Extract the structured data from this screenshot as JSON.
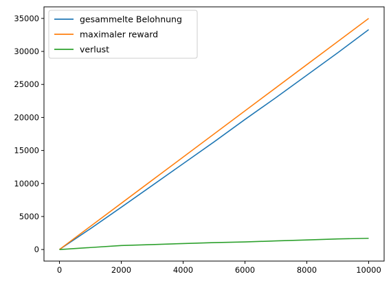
{
  "chart_data": {
    "type": "line",
    "title": "",
    "xlabel": "",
    "ylabel": "",
    "xlim": [
      -500,
      10500
    ],
    "ylim": [
      -1750,
      36750
    ],
    "xticks": [
      0,
      2000,
      4000,
      6000,
      8000,
      10000
    ],
    "yticks": [
      0,
      5000,
      10000,
      15000,
      20000,
      25000,
      30000,
      35000
    ],
    "grid": false,
    "legend": "top-left",
    "series": [
      {
        "name": "gesammelte Belohnung",
        "color": "#1f77b4",
        "x": [
          0,
          1000,
          2000,
          3000,
          4000,
          5000,
          6000,
          7000,
          8000,
          9000,
          10000
        ],
        "y": [
          0,
          3150,
          6400,
          9700,
          13000,
          16300,
          19700,
          23000,
          26400,
          29800,
          33300
        ]
      },
      {
        "name": "maximaler reward",
        "color": "#ff7f0e",
        "x": [
          0,
          1000,
          2000,
          3000,
          4000,
          5000,
          6000,
          7000,
          8000,
          9000,
          10000
        ],
        "y": [
          0,
          3500,
          7000,
          10500,
          14000,
          17500,
          21000,
          24500,
          28000,
          31500,
          35000
        ]
      },
      {
        "name": "verlust",
        "color": "#2ca02c",
        "x": [
          0,
          1000,
          2000,
          3000,
          4000,
          5000,
          6000,
          7000,
          8000,
          9000,
          10000
        ],
        "y": [
          0,
          300,
          600,
          750,
          900,
          1050,
          1150,
          1300,
          1450,
          1600,
          1700
        ]
      }
    ]
  }
}
